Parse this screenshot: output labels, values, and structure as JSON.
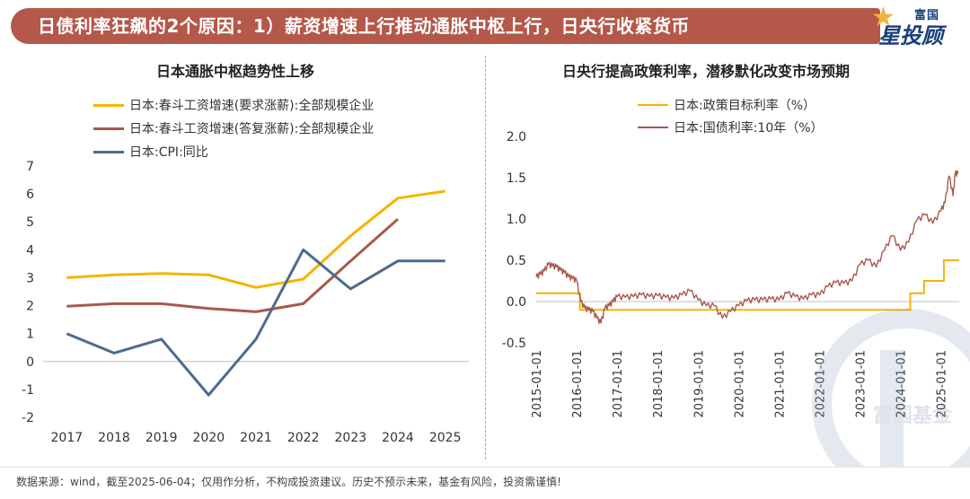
{
  "header": {
    "title": "日债利率狂飙的2个原因：1）薪资增速上行推动通胀中枢上行，日央行收紧货币",
    "logo_top": "富国",
    "logo_main": "星投顾"
  },
  "watermark": {
    "text": "富国基金"
  },
  "footer": {
    "text": "数据来源：wind，截至2025-06-04；仅用作分析，不构成投资建议。历史不预示未来，基金有风险，投资需谨慎!"
  },
  "colors": {
    "banner": "#b4584a",
    "wage_demand": "#f5b400",
    "wage_reply": "#a65a4a",
    "cpi": "#4d6b8c",
    "policy": "#f5b400",
    "jgb": "#a65a4a"
  },
  "chart_data": [
    {
      "type": "line",
      "title": "日本通胀中枢趋势性上移",
      "categories": [
        "2017",
        "2018",
        "2019",
        "2020",
        "2021",
        "2022",
        "2023",
        "2024",
        "2025"
      ],
      "ylim": [
        -2,
        7
      ],
      "yticks": [
        "7",
        "6",
        "5",
        "4",
        "3",
        "2",
        "1",
        "0",
        "-1",
        "-2"
      ],
      "grid": false,
      "legend_position": "top-left",
      "series": [
        {
          "name": "日本:春斗工资增速(要求涨薪):全部规模企业",
          "values": [
            3.0,
            3.1,
            3.15,
            3.1,
            2.65,
            2.95,
            4.5,
            5.85,
            6.1
          ]
        },
        {
          "name": "日本:春斗工资增速(答复涨薪):全部规模企业",
          "values": [
            1.98,
            2.07,
            2.07,
            1.9,
            1.78,
            2.07,
            3.6,
            5.1,
            null
          ]
        },
        {
          "name": "日本:CPI:同比",
          "values": [
            1.0,
            0.3,
            0.8,
            -1.2,
            0.8,
            4.0,
            2.6,
            3.6,
            3.6
          ]
        }
      ]
    },
    {
      "type": "line",
      "title": "日央行提高政策利率，潜移默化改变市场预期",
      "x_tick_labels": [
        "2015-01-01",
        "2016-01-01",
        "2017-01-01",
        "2018-01-01",
        "2019-01-01",
        "2020-01-01",
        "2021-01-01",
        "2022-01-01",
        "2023-01-01",
        "2024-01-01",
        "2025-01-01"
      ],
      "ylim": [
        -0.5,
        2.0
      ],
      "yticks": [
        "2.0",
        "1.5",
        "1.0",
        "0.5",
        "0.0",
        "-0.5"
      ],
      "grid": false,
      "legend_position": "top-left",
      "series": [
        {
          "name": "日本:政策目标利率（%）",
          "step": true,
          "x": [
            2015.0,
            2016.08,
            2024.24,
            2024.58,
            2025.07,
            2025.45
          ],
          "values": [
            0.1,
            -0.1,
            0.1,
            0.25,
            0.5,
            0.5
          ]
        },
        {
          "name": "日本:国债利率:10年（%）",
          "x": [
            2015.0,
            2015.1,
            2015.2,
            2015.3,
            2015.4,
            2015.5,
            2015.6,
            2015.7,
            2015.8,
            2015.9,
            2016.0,
            2016.1,
            2016.2,
            2016.3,
            2016.4,
            2016.5,
            2016.6,
            2016.7,
            2016.8,
            2016.9,
            2017.0,
            2017.2,
            2017.4,
            2017.6,
            2017.8,
            2018.0,
            2018.2,
            2018.4,
            2018.6,
            2018.8,
            2019.0,
            2019.2,
            2019.4,
            2019.6,
            2019.8,
            2020.0,
            2020.2,
            2020.4,
            2020.6,
            2020.8,
            2021.0,
            2021.2,
            2021.4,
            2021.6,
            2021.8,
            2022.0,
            2022.2,
            2022.4,
            2022.6,
            2022.8,
            2023.0,
            2023.2,
            2023.4,
            2023.6,
            2023.8,
            2024.0,
            2024.2,
            2024.4,
            2024.6,
            2024.8,
            2025.0,
            2025.1,
            2025.2,
            2025.3,
            2025.35,
            2025.42
          ],
          "values": [
            0.3,
            0.33,
            0.37,
            0.45,
            0.43,
            0.42,
            0.38,
            0.35,
            0.3,
            0.28,
            0.25,
            0.0,
            -0.08,
            -0.1,
            -0.12,
            -0.2,
            -0.26,
            -0.08,
            -0.05,
            0.0,
            0.06,
            0.05,
            0.06,
            0.08,
            0.06,
            0.07,
            0.05,
            0.04,
            0.08,
            0.13,
            0.02,
            -0.05,
            -0.05,
            -0.2,
            -0.12,
            -0.05,
            0.01,
            0.02,
            0.02,
            0.03,
            0.02,
            0.1,
            0.06,
            0.03,
            0.08,
            0.08,
            0.18,
            0.23,
            0.22,
            0.25,
            0.45,
            0.5,
            0.42,
            0.62,
            0.8,
            0.62,
            0.72,
            0.98,
            1.05,
            0.95,
            1.1,
            1.2,
            1.52,
            1.28,
            1.55,
            1.55
          ]
        }
      ]
    }
  ]
}
